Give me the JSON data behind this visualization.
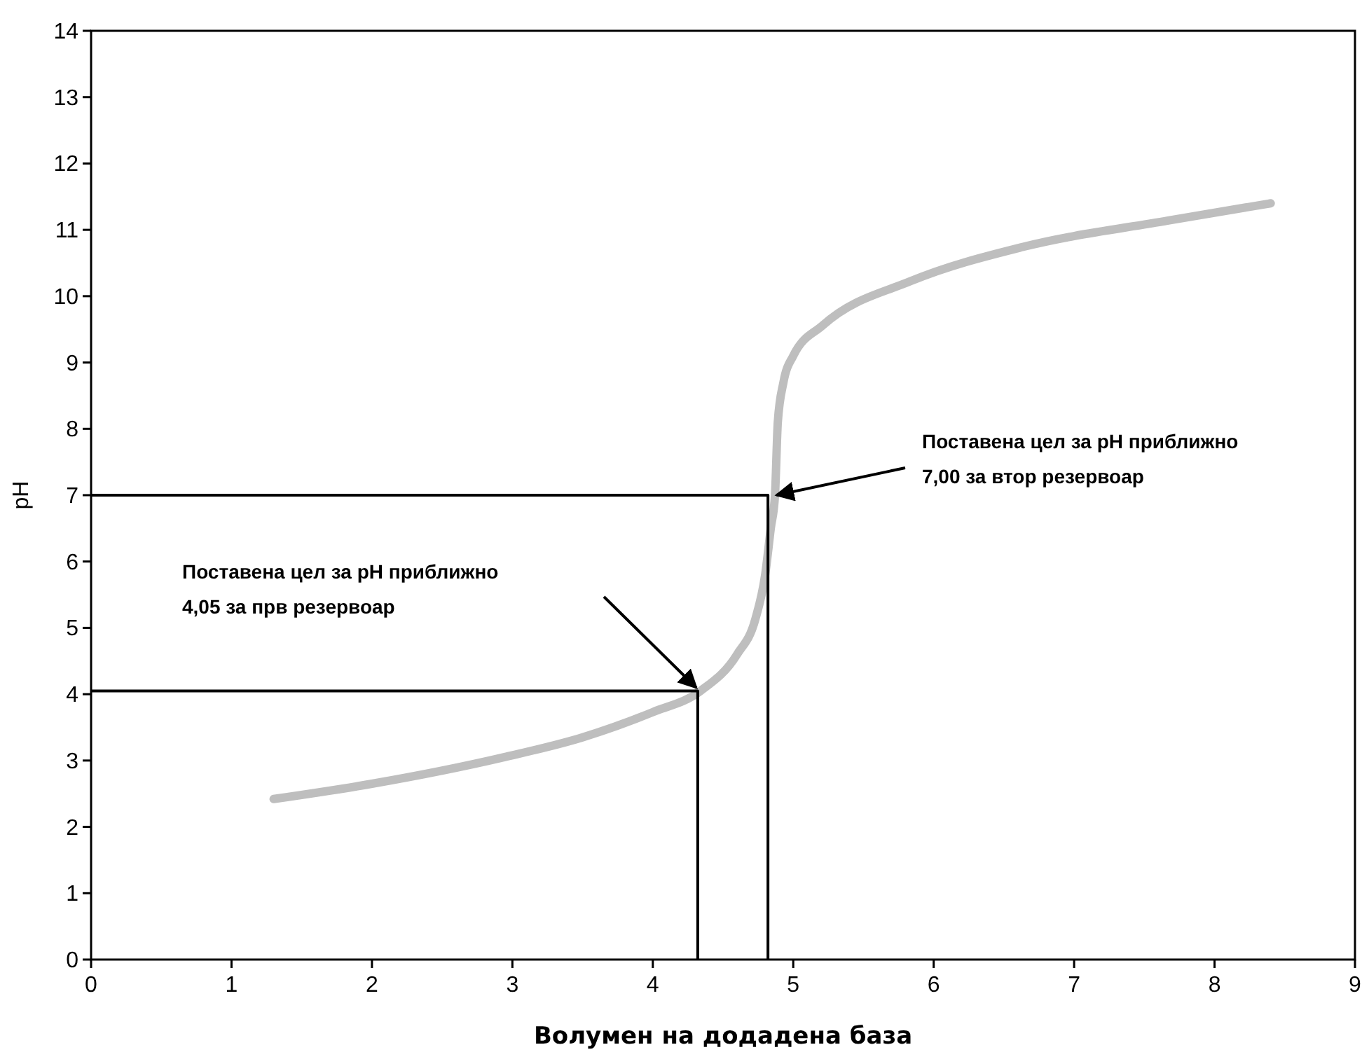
{
  "chart_data": {
    "type": "line",
    "xlabel": "Волумен на додадена база",
    "ylabel": "pH",
    "xlim": [
      0,
      9
    ],
    "xticks": [
      0,
      1,
      2,
      3,
      4,
      5,
      6,
      7,
      8,
      9
    ],
    "ylim": [
      0,
      14
    ],
    "yticks": [
      0,
      1,
      2,
      3,
      4,
      5,
      6,
      7,
      8,
      9,
      10,
      11,
      12,
      13,
      14
    ],
    "grid": false,
    "marker": "none",
    "line_style": "solid",
    "series": [
      {
        "color": "#bebebe",
        "x": [
          1.3,
          2,
          2.94,
          3.5,
          4.0,
          4.34,
          4.6,
          4.73,
          4.8,
          4.84,
          4.87,
          4.89,
          4.93,
          5.0,
          5.21,
          5.84,
          6.63,
          7.67,
          8.4
        ],
        "values": [
          2.42,
          2.65,
          3.05,
          3.35,
          3.73,
          4.05,
          4.6,
          5.13,
          5.8,
          6.5,
          7.0,
          8.1,
          8.7,
          9.1,
          9.56,
          10.23,
          10.74,
          11.14,
          11.4
        ]
      },
      {
        "color": "#000000",
        "x": [
          0,
          4.32,
          4.32
        ],
        "values": [
          4.05,
          4.05,
          0
        ]
      },
      {
        "color": "#000000",
        "x": [
          0,
          4.82,
          4.82
        ],
        "values": [
          7,
          7,
          0
        ]
      }
    ],
    "annotations": [
      "Поставена цел за pH приближно\n4,05 за прв резервоар",
      {
        "text": "Поставена цел за pH приближно\n7,00 за втор резервоар",
        "x": 4.88,
        "y": 7
      }
    ]
  }
}
